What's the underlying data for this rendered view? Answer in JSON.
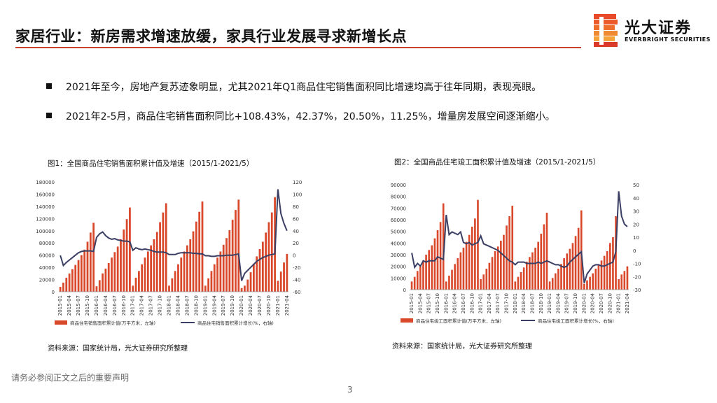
{
  "header": {
    "title": "家居行业：新房需求增速放缓，家具行业发展寻求新增长点",
    "logo_cn": "光大证券",
    "logo_en": "EVERBRIGHT SECURITIES",
    "accent_color": "#c8412d"
  },
  "bullets": [
    "2021年至今，房地产复苏迹象明显，尤其2021年Q1商品住宅销售面积同比增速均高于往年同期，表现亮眼。",
    "2021年2-5月，商品住宅销售面积同比+108.43%，42.37%，20.50%，11.25%，增量房发展空间逐渐缩小。"
  ],
  "chart1": {
    "caption": "图1：全国商品住宅销售面积累计值及增速（2015/1-2021/5）",
    "source": "资料来源：国家统计局，光大证券研究所整理"
  },
  "chart2": {
    "caption": "图2：全国商品住宅竣工面积累计值及增速（2015/1-2021/5）",
    "source": "资料来源：国家统计局，光大证券研究所整理"
  },
  "footer": {
    "disclaimer": "请务必参阅正文之后的重要声明",
    "page": "3"
  },
  "chart_data": [
    {
      "type": "bar",
      "title": "图1：全国商品住宅销售面积累计值及增速（2015/1-2021/5）",
      "x_ticks": [
        "2015-01",
        "2015-04",
        "2015-07",
        "2015-10",
        "2016-01",
        "2016-04",
        "2016-07",
        "2016-10",
        "2017-01",
        "2017-04",
        "2017-07",
        "2017-10",
        "2018-01",
        "2018-04",
        "2018-07",
        "2018-10",
        "2019-01",
        "2019-04",
        "2019-07",
        "2019-10",
        "2020-01",
        "2020-04",
        "2020-07",
        "2020-10",
        "2021-01",
        "2021-04"
      ],
      "y_left": {
        "ticks": [
          "0",
          "20000",
          "40000",
          "60000",
          "80000",
          "100000",
          "120000",
          "140000",
          "160000",
          "180000"
        ],
        "ylim": [
          0,
          180000
        ]
      },
      "y_right": {
        "ticks": [
          "-60",
          "-40",
          "-20",
          "0",
          "20",
          "40",
          "60",
          "80",
          "100",
          "120"
        ],
        "ylim": [
          -60,
          120
        ]
      },
      "legend": [
        "商品住宅销售面积累计值(万平方米，左轴)",
        "商品住宅销售面积累计增长(%，右轴)"
      ],
      "series": [
        {
          "name": "商品住宅销售面积累计值(万平方米，左轴)",
          "axis": "left",
          "color": "#d9482b",
          "values": [
            8000,
            15000,
            23000,
            30000,
            37000,
            44000,
            52000,
            60000,
            69000,
            82000,
            97000,
            113000,
            9000,
            19000,
            30000,
            38000,
            47000,
            56000,
            65000,
            74000,
            86000,
            102000,
            119000,
            138000,
            10000,
            23000,
            34000,
            45000,
            56000,
            66000,
            76000,
            86000,
            98000,
            114000,
            130000,
            145000,
            10000,
            22000,
            34000,
            45000,
            56000,
            66000,
            76000,
            86000,
            99000,
            115000,
            131000,
            148000,
            10000,
            22000,
            34000,
            45000,
            56000,
            66000,
            77000,
            88000,
            101000,
            118000,
            134000,
            151000,
            6000,
            10000,
            20000,
            32000,
            46000,
            58000,
            70000,
            82000,
            97000,
            114000,
            130000,
            155000,
            18000,
            33000,
            48000,
            62000
          ]
        },
        {
          "name": "商品住宅销售面积累计增长(%，右轴)",
          "axis": "right",
          "color": "#3b3f63",
          "values": [
            -0.5,
            -17,
            -12,
            -8,
            -4,
            0,
            4,
            6,
            7,
            7,
            7,
            6,
            29,
            35,
            38,
            32,
            28,
            26,
            27,
            25,
            24,
            23,
            23,
            22,
            8,
            12,
            10,
            9,
            10,
            9,
            8,
            6,
            5,
            5,
            5,
            4,
            1,
            1,
            1,
            3,
            4,
            4,
            4,
            4,
            3,
            3,
            2,
            2,
            -1,
            -1,
            -2,
            -2,
            -1,
            -1,
            -1,
            0,
            0,
            0,
            1,
            2,
            -42,
            -30,
            -25,
            -20,
            -15,
            -10,
            -7,
            -4,
            -2,
            0,
            1,
            2,
            108,
            68,
            52,
            40
          ]
        }
      ]
    },
    {
      "type": "bar",
      "title": "图2：全国商品住宅竣工面积累计值及增速（2015/1-2021/5）",
      "x_ticks": [
        "2015-01",
        "2015-04",
        "2015-07",
        "2015-10",
        "2016-01",
        "2016-04",
        "2016-07",
        "2016-10",
        "2017-01",
        "2017-04",
        "2017-07",
        "2017-10",
        "2018-01",
        "2018-04",
        "2018-07",
        "2018-10",
        "2019-01",
        "2019-04",
        "2019-07",
        "2019-10",
        "2020-01",
        "2020-04",
        "2020-07",
        "2020-10",
        "2021-01",
        "2021-04"
      ],
      "y_left": {
        "ticks": [
          "0",
          "10000",
          "20000",
          "30000",
          "40000",
          "50000",
          "60000",
          "70000",
          "80000",
          "90000"
        ],
        "ylim": [
          0,
          90000
        ]
      },
      "y_right": {
        "ticks": [
          "-30",
          "-20",
          "-10",
          "0",
          "10",
          "20",
          "30",
          "40",
          "50"
        ],
        "ylim": [
          -30,
          50
        ]
      },
      "legend": [
        "商品住宅竣工面积累计值(万平方米，左轴)",
        "商品住宅竣工面积累计增长(%，右轴)"
      ],
      "series": [
        {
          "name": "商品住宅竣工面积累计值(万平方米，左轴)",
          "axis": "left",
          "color": "#d9482b",
          "values": [
            7000,
            11000,
            16000,
            21000,
            25000,
            30000,
            34000,
            38000,
            44000,
            51000,
            58000,
            74000,
            7000,
            12000,
            17000,
            22000,
            27000,
            32000,
            36000,
            41000,
            47000,
            54000,
            61000,
            77000,
            9000,
            13000,
            18000,
            23000,
            28000,
            33000,
            37000,
            42000,
            47000,
            55000,
            63000,
            72000,
            7000,
            11000,
            15000,
            19000,
            24000,
            28000,
            32000,
            36000,
            41000,
            48000,
            56000,
            66000,
            7000,
            10000,
            14000,
            18000,
            22000,
            27000,
            31000,
            35000,
            40000,
            46000,
            53000,
            68000,
            5000,
            8000,
            11000,
            14000,
            18000,
            21000,
            25000,
            29000,
            33000,
            40000,
            45000,
            63000,
            9000,
            13000,
            16000,
            20000
          ]
        },
        {
          "name": "商品住宅竣工面积累计增长(%，右轴)",
          "axis": "right",
          "color": "#3b3f63",
          "values": [
            -2,
            -13,
            -10,
            -12,
            -8,
            -9,
            -8,
            -8,
            -8,
            -5,
            -6,
            -7,
            27,
            12,
            14,
            13,
            12,
            14,
            6,
            5,
            6,
            4,
            5,
            6,
            11,
            5,
            4,
            3,
            2,
            1,
            0,
            -2,
            -4,
            -6,
            -8,
            -9,
            -11,
            -9,
            -9,
            -9,
            -10,
            -10,
            -10,
            -10,
            -9,
            -10,
            -9,
            -8,
            -9,
            -10,
            -11,
            -11,
            -12,
            -13,
            -12,
            -9,
            -7,
            -5,
            -3,
            -1,
            -25,
            -18,
            -15,
            -12,
            -11,
            -11,
            -12,
            -12,
            -11,
            -10,
            -9,
            -1,
            45,
            26,
            20,
            18
          ]
        }
      ]
    }
  ]
}
